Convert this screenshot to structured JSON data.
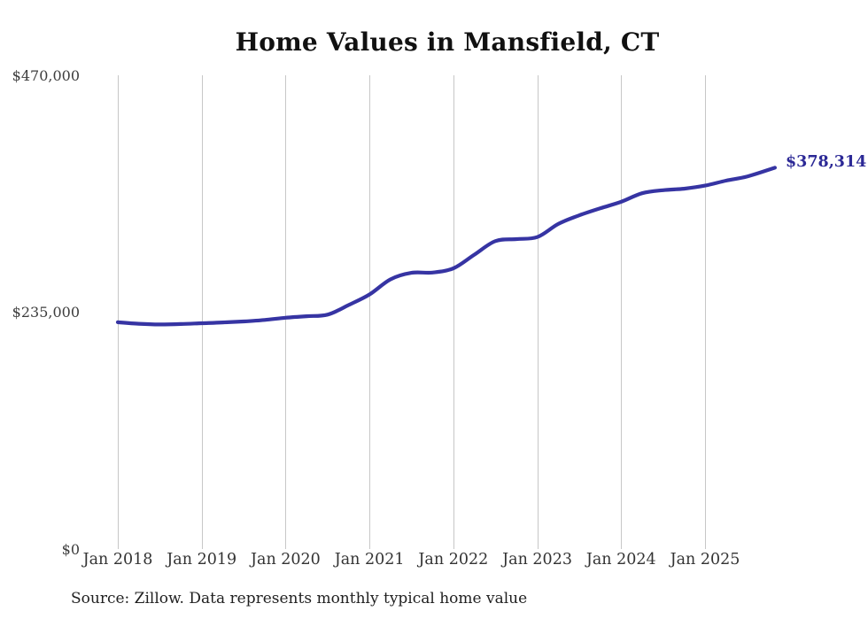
{
  "chart_data": {
    "type": "line",
    "title": "Home Values in Mansfield, CT",
    "xlabel": "",
    "ylabel": "",
    "ylim": [
      0,
      470000
    ],
    "grid": "vertical-only",
    "legend": "none",
    "line_color": "#3634a3",
    "grid_color": "#c7c7c7",
    "end_label_color": "#2c2996",
    "y_tick_labels": [
      "$470,000",
      "$235,000",
      "$0"
    ],
    "y_tick_values": [
      470000,
      235000,
      0
    ],
    "x_tick_labels": [
      "Jan 2018",
      "Jan 2019",
      "Jan 2020",
      "Jan 2021",
      "Jan 2022",
      "Jan 2023",
      "Jan 2024",
      "Jan 2025"
    ],
    "end_label": "$378,314",
    "final_value": 378314,
    "source_note": "Source: Zillow. Data represents monthly typical home value",
    "series": [
      {
        "name": "Typical home value",
        "points": [
          {
            "date": "2018-01",
            "value": 225000
          },
          {
            "date": "2018-04",
            "value": 223500
          },
          {
            "date": "2018-07",
            "value": 222800
          },
          {
            "date": "2018-10",
            "value": 223200
          },
          {
            "date": "2019-01",
            "value": 224000
          },
          {
            "date": "2019-04",
            "value": 224800
          },
          {
            "date": "2019-07",
            "value": 225800
          },
          {
            "date": "2019-10",
            "value": 227300
          },
          {
            "date": "2020-01",
            "value": 229500
          },
          {
            "date": "2020-04",
            "value": 231000
          },
          {
            "date": "2020-07",
            "value": 232500
          },
          {
            "date": "2020-10",
            "value": 242000
          },
          {
            "date": "2021-01",
            "value": 252500
          },
          {
            "date": "2021-04",
            "value": 267500
          },
          {
            "date": "2021-07",
            "value": 274000
          },
          {
            "date": "2021-10",
            "value": 274300
          },
          {
            "date": "2022-01",
            "value": 278500
          },
          {
            "date": "2022-04",
            "value": 292000
          },
          {
            "date": "2022-07",
            "value": 305500
          },
          {
            "date": "2022-10",
            "value": 307500
          },
          {
            "date": "2023-01",
            "value": 309500
          },
          {
            "date": "2023-04",
            "value": 322500
          },
          {
            "date": "2023-07",
            "value": 331000
          },
          {
            "date": "2023-10",
            "value": 338000
          },
          {
            "date": "2024-01",
            "value": 344500
          },
          {
            "date": "2024-04",
            "value": 353000
          },
          {
            "date": "2024-07",
            "value": 356000
          },
          {
            "date": "2024-10",
            "value": 357500
          },
          {
            "date": "2025-01",
            "value": 360500
          },
          {
            "date": "2025-04",
            "value": 365500
          },
          {
            "date": "2025-07",
            "value": 369500
          },
          {
            "date": "2025-11",
            "value": 378314
          }
        ]
      }
    ]
  }
}
